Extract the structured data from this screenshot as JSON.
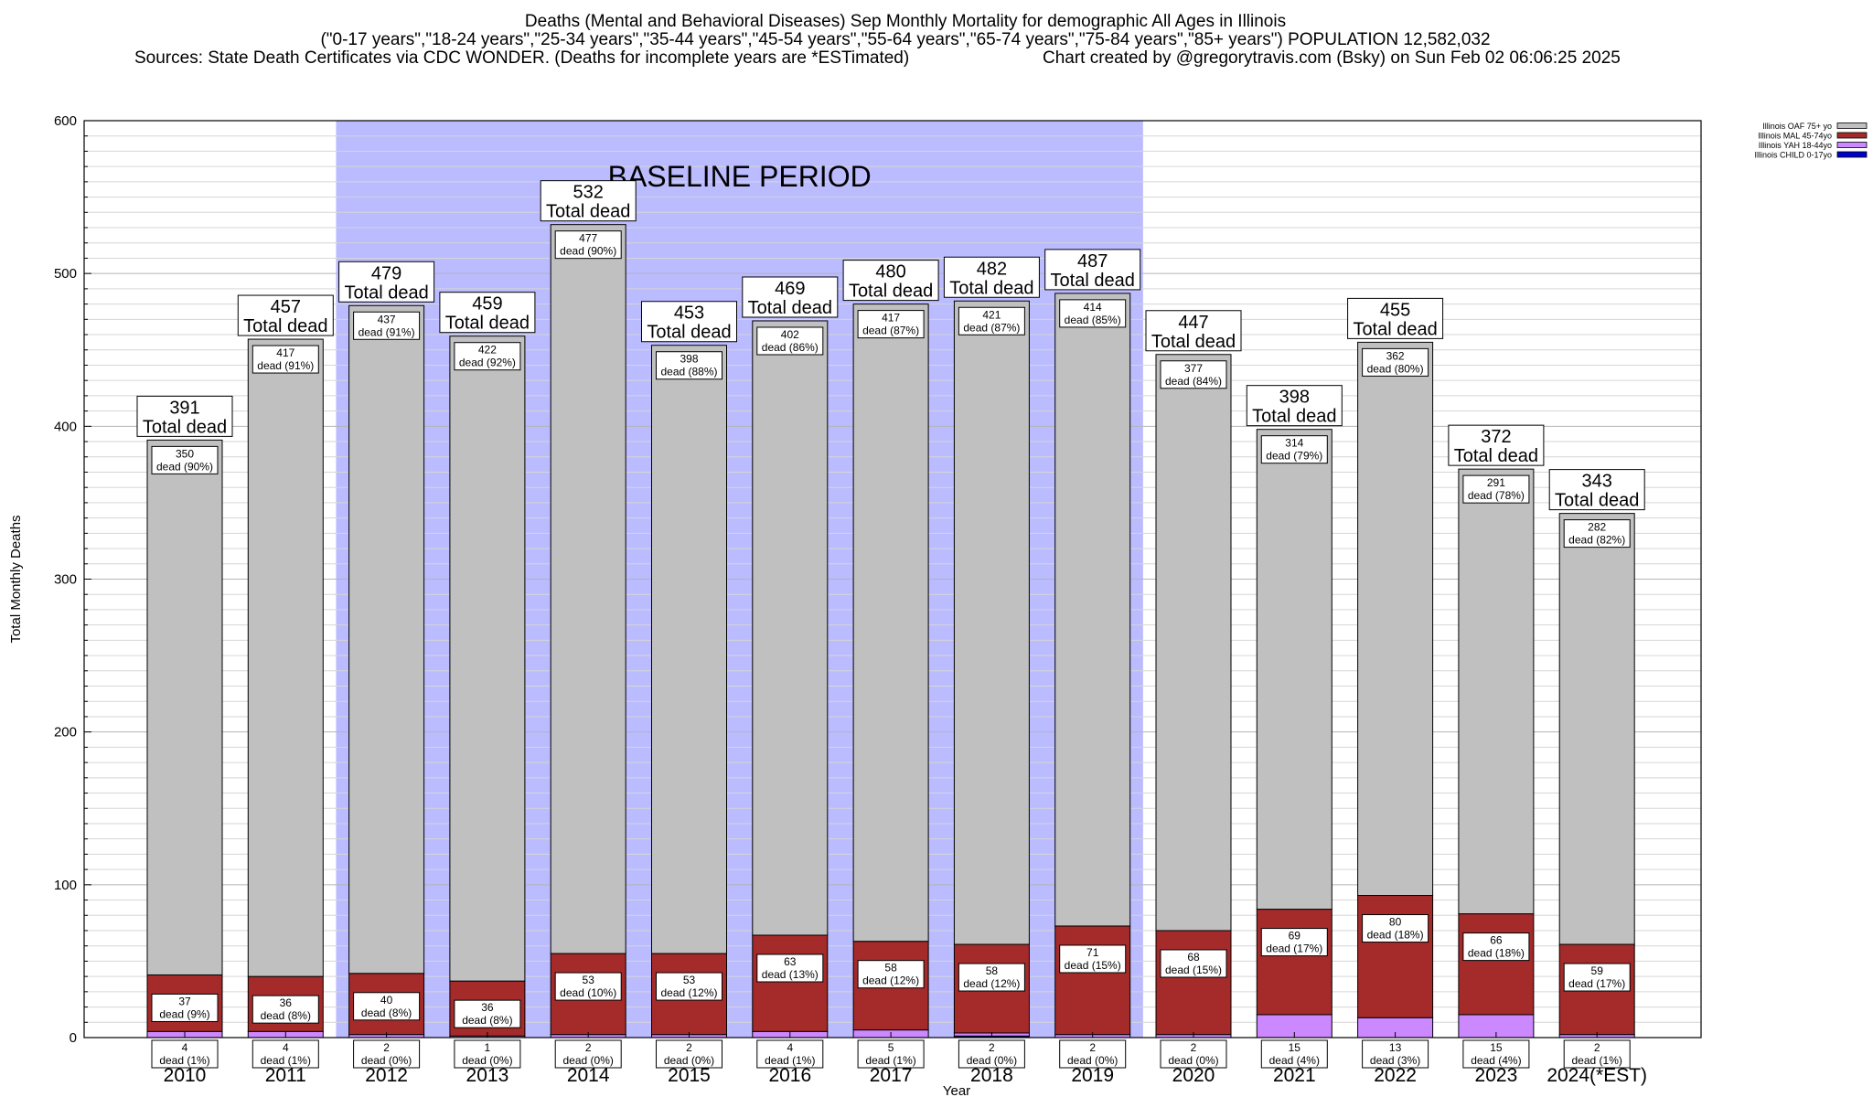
{
  "header": {
    "title_line1": "Deaths (Mental and Behavioral Diseases) Sep Monthly Mortality for demographic All Ages in Illinois",
    "title_line2": "(\"0-17 years\",\"18-24 years\",\"25-34 years\",\"35-44 years\",\"45-54 years\",\"55-64 years\",\"65-74 years\",\"75-84 years\",\"85+ years\") POPULATION 12,582,032",
    "sources": "Sources: State Death Certificates via CDC WONDER. (Deaths for incomplete years are *ESTimated)",
    "credit": "Chart created by @gregorytravis.com (Bsky) on Sun Feb 02 06:06:25 2025"
  },
  "chart_data": {
    "type": "bar",
    "stacked": true,
    "xlabel": "Year",
    "ylabel": "Total Monthly Deaths",
    "ylim": [
      0,
      600
    ],
    "yticks": [
      0,
      100,
      200,
      300,
      400,
      500,
      600
    ],
    "grid": true,
    "legend_position": "top-right, outside plot",
    "baseline": {
      "label": "BASELINE PERIOD",
      "from": "2012",
      "to": "2019",
      "color": "#bbbbff"
    },
    "total_label": "Total dead",
    "segment_label": "dead",
    "categories": [
      "2010",
      "2011",
      "2012",
      "2013",
      "2014",
      "2015",
      "2016",
      "2017",
      "2018",
      "2019",
      "2020",
      "2021",
      "2022",
      "2023",
      "2024(*EST)"
    ],
    "totals": [
      391,
      457,
      479,
      459,
      532,
      453,
      469,
      480,
      482,
      487,
      447,
      398,
      455,
      372,
      343
    ],
    "series": [
      {
        "name": "Illinois CHILD 0-17yo",
        "color": "#0000cc",
        "values": [
          0,
          0,
          0,
          0,
          0,
          0,
          0,
          0,
          1,
          0,
          0,
          0,
          0,
          0,
          0
        ],
        "labels": []
      },
      {
        "name": "Illinois YAH 18-44yo",
        "color": "#cc88ff",
        "values": [
          4,
          4,
          2,
          1,
          2,
          2,
          4,
          5,
          2,
          2,
          2,
          15,
          13,
          15,
          2
        ],
        "labels": [
          "dead (1%)",
          "dead (1%)",
          "dead (0%)",
          "dead (0%)",
          "dead (0%)",
          "dead (0%)",
          "dead (1%)",
          "dead (1%)",
          "dead (0%)",
          "dead (0%)",
          "dead (0%)",
          "dead (4%)",
          "dead (3%)",
          "dead (4%)",
          "dead (1%)"
        ]
      },
      {
        "name": "Illinois MAL 45-74yo",
        "color": "#a52a2a",
        "values": [
          37,
          36,
          40,
          36,
          53,
          53,
          63,
          58,
          58,
          71,
          68,
          69,
          80,
          66,
          59
        ],
        "labels": [
          "dead (9%)",
          "dead (8%)",
          "dead (8%)",
          "dead (8%)",
          "dead (10%)",
          "dead (12%)",
          "dead (13%)",
          "dead (12%)",
          "dead (12%)",
          "dead (15%)",
          "dead (15%)",
          "dead (17%)",
          "dead (18%)",
          "dead (18%)",
          "dead (17%)"
        ]
      },
      {
        "name": "Illinois OAF 75+ yo",
        "color": "#c0c0c0",
        "values": [
          350,
          417,
          437,
          422,
          477,
          398,
          402,
          417,
          421,
          414,
          377,
          314,
          362,
          291,
          282
        ],
        "labels": [
          "dead (90%)",
          "dead (91%)",
          "dead (91%)",
          "dead (92%)",
          "dead (90%)",
          "dead (88%)",
          "dead (86%)",
          "dead (87%)",
          "dead (87%)",
          "dead (85%)",
          "dead (84%)",
          "dead (79%)",
          "dead (80%)",
          "dead (78%)",
          "dead (82%)"
        ]
      }
    ]
  }
}
